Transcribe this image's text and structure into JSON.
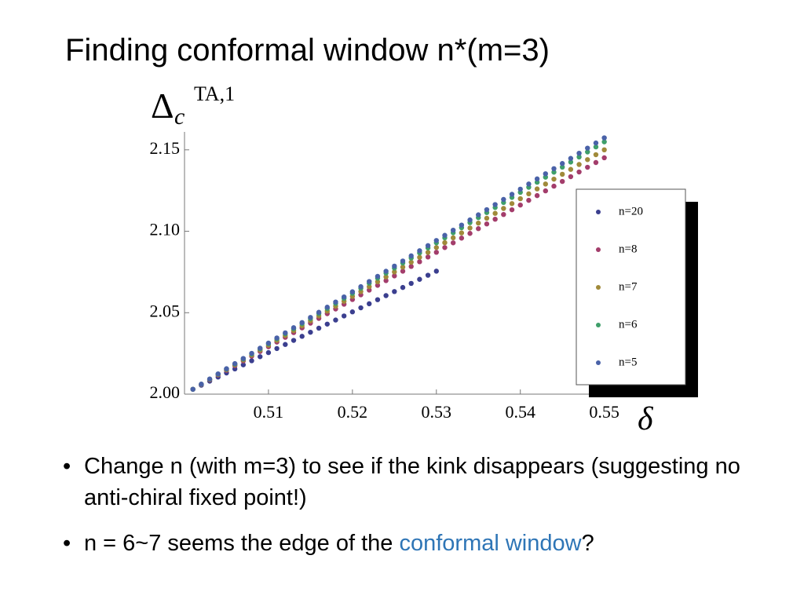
{
  "slide_title": "Finding conformal window n*(m=3)",
  "chart_data": {
    "type": "scatter",
    "ylabel": {
      "symbol": "Δ",
      "subscript": "c",
      "superscript": "TA,1"
    },
    "xlabel": "δ",
    "x": [
      0.501,
      0.502,
      0.503,
      0.504,
      0.505,
      0.506,
      0.507,
      0.508,
      0.509,
      0.51,
      0.511,
      0.512,
      0.513,
      0.514,
      0.515,
      0.516,
      0.517,
      0.518,
      0.519,
      0.52,
      0.521,
      0.522,
      0.523,
      0.524,
      0.525,
      0.526,
      0.527,
      0.528,
      0.529,
      0.53,
      0.531,
      0.532,
      0.533,
      0.534,
      0.535,
      0.536,
      0.537,
      0.538,
      0.539,
      0.54,
      0.541,
      0.542,
      0.543,
      0.544,
      0.545,
      0.546,
      0.547,
      0.548,
      0.549,
      0.55
    ],
    "series": [
      {
        "name": "n=20",
        "color": "#3b3f8f",
        "values": [
          2.003,
          2.0055,
          2.008,
          2.0105,
          2.013,
          2.0155,
          2.018,
          2.0205,
          2.023,
          2.0255,
          2.028,
          2.0305,
          2.033,
          2.0355,
          2.038,
          2.0405,
          2.043,
          2.0455,
          2.048,
          2.0505,
          2.053,
          2.0555,
          2.058,
          2.0605,
          2.063,
          2.0655,
          2.068,
          2.0705,
          2.073,
          2.0755,
          null,
          null,
          null,
          null,
          null,
          null,
          null,
          null,
          null,
          null,
          null,
          null,
          null,
          null,
          null,
          null,
          null,
          null,
          null,
          null
        ]
      },
      {
        "name": "n=8",
        "color": "#a33d6b",
        "values": [
          2.003,
          2.0059,
          2.0088,
          2.0117,
          2.0146,
          2.0175,
          2.0204,
          2.0233,
          2.0262,
          2.0291,
          2.032,
          2.0349,
          2.0378,
          2.0407,
          2.0436,
          2.0465,
          2.0494,
          2.0523,
          2.0552,
          2.0581,
          2.061,
          2.0639,
          2.0668,
          2.0697,
          2.0726,
          2.0755,
          2.0784,
          2.0813,
          2.0842,
          2.0871,
          2.09,
          2.0929,
          2.0958,
          2.0987,
          2.1016,
          2.1045,
          2.1074,
          2.1103,
          2.1132,
          2.1161,
          2.119,
          2.1219,
          2.1248,
          2.1277,
          2.1306,
          2.1335,
          2.1364,
          2.1393,
          2.1422,
          2.1451
        ]
      },
      {
        "name": "n=7",
        "color": "#a08a3a",
        "values": [
          2.003,
          2.006,
          2.009,
          2.012,
          2.015,
          2.018,
          2.021,
          2.024,
          2.027,
          2.03,
          2.033,
          2.036,
          2.039,
          2.042,
          2.045,
          2.048,
          2.051,
          2.054,
          2.057,
          2.06,
          2.063,
          2.066,
          2.069,
          2.072,
          2.075,
          2.078,
          2.081,
          2.084,
          2.087,
          2.09,
          2.093,
          2.096,
          2.099,
          2.102,
          2.105,
          2.108,
          2.111,
          2.114,
          2.117,
          2.12,
          2.123,
          2.126,
          2.129,
          2.132,
          2.135,
          2.138,
          2.141,
          2.144,
          2.147,
          2.15
        ]
      },
      {
        "name": "n=6",
        "color": "#3f9f6a",
        "values": [
          2.003,
          2.0061,
          2.0092,
          2.0123,
          2.0154,
          2.0185,
          2.0216,
          2.0247,
          2.0278,
          2.0309,
          2.034,
          2.0371,
          2.0402,
          2.0433,
          2.0464,
          2.0495,
          2.0526,
          2.0557,
          2.0588,
          2.0619,
          2.065,
          2.0681,
          2.0712,
          2.0743,
          2.0774,
          2.0805,
          2.0836,
          2.0867,
          2.0898,
          2.0929,
          2.096,
          2.0991,
          2.1022,
          2.1053,
          2.1084,
          2.1115,
          2.1146,
          2.1177,
          2.1208,
          2.1239,
          2.127,
          2.1301,
          2.1332,
          2.1363,
          2.1394,
          2.1425,
          2.1456,
          2.1487,
          2.1518,
          2.1549
        ]
      },
      {
        "name": "n=5",
        "color": "#4a62a8",
        "values": [
          2.003,
          2.00615,
          2.0093,
          2.01245,
          2.0156,
          2.01875,
          2.0219,
          2.02505,
          2.0282,
          2.03135,
          2.0345,
          2.03765,
          2.0408,
          2.04395,
          2.0471,
          2.05025,
          2.0534,
          2.05655,
          2.0597,
          2.06285,
          2.066,
          2.06915,
          2.0723,
          2.07545,
          2.0786,
          2.08175,
          2.0849,
          2.08805,
          2.0912,
          2.09435,
          2.0975,
          2.10065,
          2.1038,
          2.10695,
          2.1101,
          2.11325,
          2.1164,
          2.11955,
          2.1227,
          2.12585,
          2.129,
          2.13215,
          2.1353,
          2.13845,
          2.1416,
          2.14475,
          2.1479,
          2.15105,
          2.1542,
          2.15735
        ]
      }
    ],
    "xlim": [
      0.5,
      0.5505
    ],
    "xticks": [
      0.51,
      0.52,
      0.53,
      0.54,
      0.55
    ],
    "ylim": [
      2.0,
      2.161
    ],
    "yticks": [
      {
        "value": 2.0,
        "label": "2.00"
      },
      {
        "value": 2.05,
        "label": "2.05"
      },
      {
        "value": 2.1,
        "label": "2.10"
      },
      {
        "value": 2.15,
        "label": "2.15"
      }
    ],
    "legend": "right"
  },
  "bullets": [
    {
      "parts": [
        "Change n (with m=3) to see if the kink disappears (suggesting no anti-chiral fixed point!)"
      ]
    },
    {
      "parts": [
        "n = 6~7 seems the edge of the ",
        "conformal window",
        "?"
      ]
    }
  ]
}
